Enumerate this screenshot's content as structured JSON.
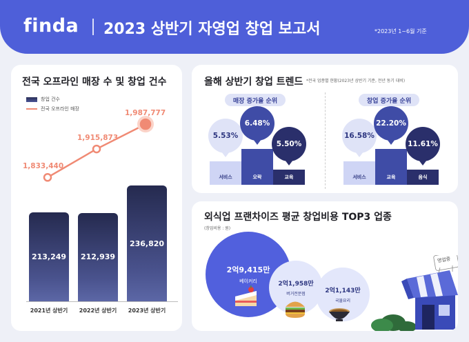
{
  "header": {
    "logo": "finda",
    "title": "2023 상반기 자영업 창업 보고서",
    "basis_note": "*2023년 1~6월 기준"
  },
  "left_panel": {
    "title": "전국 오프라인 매장 수 및 창업 건수",
    "legend": {
      "bar_label": "창업 건수",
      "line_label": "전국 오프라인 매장"
    }
  },
  "right_top": {
    "title": "올해 상반기 창업 트렌드",
    "note": "*전국 업종별 현황(2023년 상반기 기준, 전년 동기 대비)",
    "store_growth": {
      "heading": "매장 증가율 순위",
      "items": [
        {
          "rank": 2,
          "category": "서비스",
          "rate": "5.53%"
        },
        {
          "rank": 1,
          "category": "오락",
          "rate": "6.48%"
        },
        {
          "rank": 3,
          "category": "교육",
          "rate": "5.50%"
        }
      ]
    },
    "startup_growth": {
      "heading": "창업 증가율 순위",
      "items": [
        {
          "rank": 2,
          "category": "서비스",
          "rate": "16.58%"
        },
        {
          "rank": 1,
          "category": "교육",
          "rate": "22.20%"
        },
        {
          "rank": 3,
          "category": "음식",
          "rate": "11.61%"
        }
      ]
    }
  },
  "right_bottom": {
    "title": "외식업 프랜차이즈 평균 창업비용 TOP3 업종",
    "unit_note": "(창업비용 : 원)",
    "items": [
      {
        "amount": "2억9,415만",
        "category": "베이커리",
        "cost_eok": 2.9415
      },
      {
        "amount": "2억1,958만",
        "category": "버거전문점",
        "cost_eok": 2.1958
      },
      {
        "amount": "2억1,143만",
        "category": "국물요리",
        "cost_eok": 2.1143
      }
    ],
    "shop_sign": "영업중"
  },
  "chart_data": {
    "type": "bar",
    "categories": [
      "2021년 상반기",
      "2022년 상반기",
      "2023년 상반기"
    ],
    "series": [
      {
        "name": "창업 건수",
        "type": "bar",
        "values": [
          213249,
          212939,
          236820
        ],
        "labels": [
          "213,249",
          "212,939",
          "236,820"
        ]
      },
      {
        "name": "전국 오프라인 매장",
        "type": "line",
        "values": [
          1833440,
          1915873,
          1987777
        ],
        "labels": [
          "1,833,440",
          "1,915,873",
          "1,987,777"
        ]
      }
    ]
  },
  "colors": {
    "brand": "#4e5fd9",
    "bar_dark": "#252a4f",
    "line": "#f08a74",
    "rank1": "#3f4ca6",
    "rank2": "#cfd5f5",
    "rank3": "#2a2f6b"
  }
}
